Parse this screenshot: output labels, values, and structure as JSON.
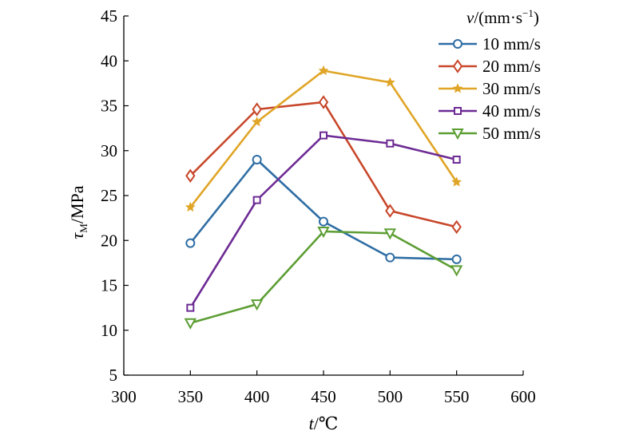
{
  "chart_data": {
    "type": "line",
    "xlabel_var": "t",
    "xlabel_unit": "/℃",
    "ylabel_var": "τ",
    "ylabel_sub": "M",
    "ylabel_unit": "/MPa",
    "legend_title_var": "v",
    "legend_title_unit": "/(mm·s",
    "legend_title_exp": "−1",
    "legend_title_close": ")",
    "legend_position": "top-right",
    "grid": false,
    "xlim": [
      300,
      600
    ],
    "ylim": [
      5,
      45
    ],
    "x_ticks": [
      "300",
      "350",
      "400",
      "450",
      "500",
      "550",
      "600"
    ],
    "y_ticks": [
      "5",
      "10",
      "15",
      "20",
      "25",
      "30",
      "35",
      "40",
      "45"
    ],
    "x": [
      350,
      400,
      450,
      500,
      550
    ],
    "series": [
      {
        "name": "10 mm/s",
        "values": [
          19.7,
          29.0,
          22.1,
          18.1,
          17.9
        ],
        "color": "#2e6da4",
        "marker": "circle"
      },
      {
        "name": "20 mm/s",
        "values": [
          27.2,
          34.6,
          35.4,
          23.3,
          21.5
        ],
        "color": "#c8472a",
        "marker": "diamond"
      },
      {
        "name": "30 mm/s",
        "values": [
          23.7,
          33.2,
          38.9,
          37.6,
          26.5
        ],
        "color": "#e0a526",
        "marker": "star"
      },
      {
        "name": "40 mm/s",
        "values": [
          12.5,
          24.5,
          31.7,
          30.8,
          29.0
        ],
        "color": "#6d2b94",
        "marker": "square"
      },
      {
        "name": "50 mm/s",
        "values": [
          10.8,
          12.9,
          21.0,
          20.8,
          16.7
        ],
        "color": "#5c9e33",
        "marker": "triangle-down"
      }
    ]
  }
}
